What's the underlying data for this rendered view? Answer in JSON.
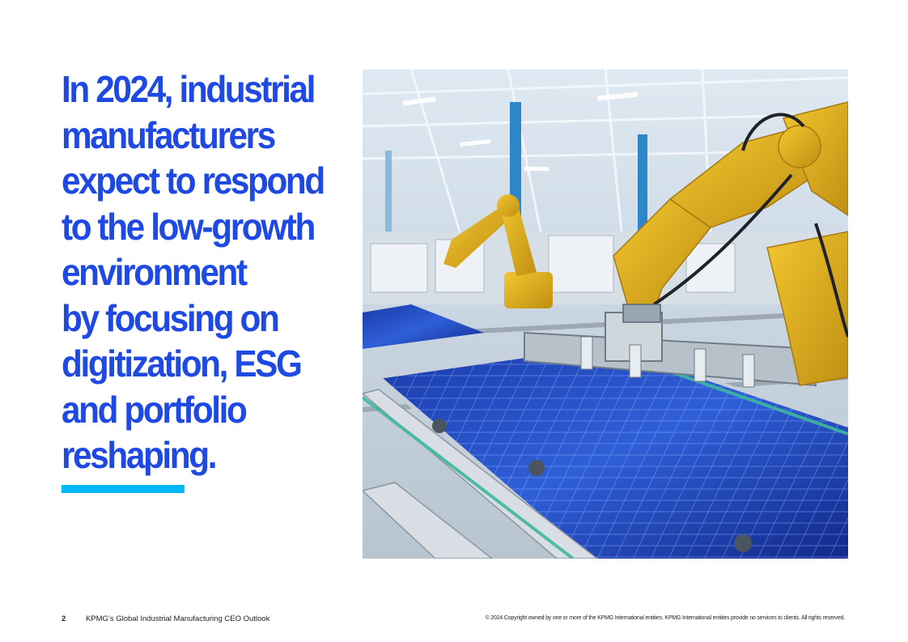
{
  "headline": {
    "lines": [
      "In 2024, industrial",
      "manufacturers",
      "expect to respond",
      "to the low-growth",
      "environment",
      "by focusing on",
      "digitization, ESG",
      "and portfolio",
      "reshaping."
    ]
  },
  "colors": {
    "headline": "#1e49e2",
    "accent_bar": "#00b8f5"
  },
  "photo": {
    "subject": "robotic arms assembling solar panels in a factory"
  },
  "footer": {
    "page_number": "2",
    "publication": "KPMG’s Global Industrial Manufacturing CEO Outlook",
    "copyright": "© 2024 Copyright owned by one or more of the KPMG International entities. KPMG International entities provide no services to clients. All rights reserved."
  }
}
